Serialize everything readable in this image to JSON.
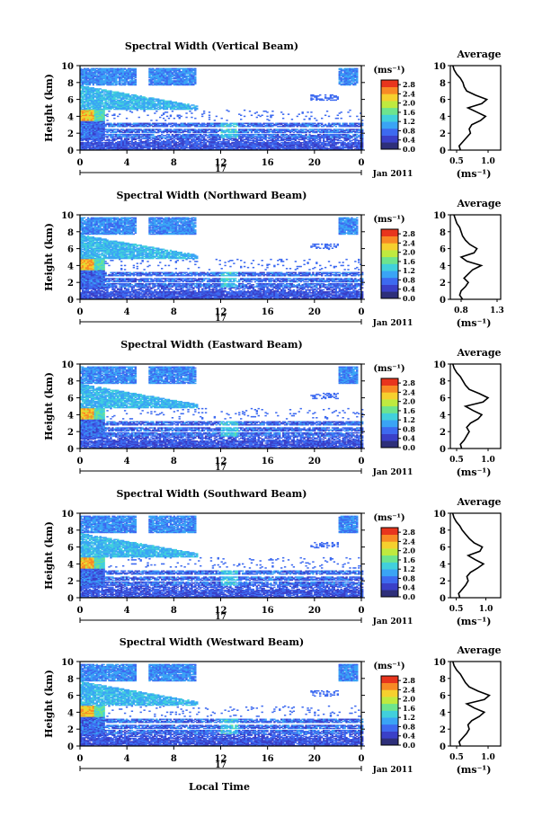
{
  "figure": {
    "xlabel": "Local Time",
    "colors": {
      "background": "#ffffff",
      "axis": "#000000",
      "profile_line": "#000000"
    }
  },
  "chart_data": [
    {
      "type": "heatmap",
      "title": "Spectral Width (Vertical Beam)",
      "ylabel": "Height (km)",
      "xticks": [
        "0",
        "4",
        "8",
        "12",
        "16",
        "20",
        "0"
      ],
      "yticks": [
        "0",
        "2",
        "4",
        "6",
        "8",
        "10"
      ],
      "xlim": [
        0,
        24
      ],
      "ylim": [
        0,
        10
      ],
      "date_label": "17",
      "month_label": "Jan 2011",
      "colorbar": {
        "unit": "(ms⁻¹)",
        "ticks": [
          "0.0",
          "0.4",
          "0.8",
          "1.2",
          "1.6",
          "2.0",
          "2.4",
          "2.8"
        ],
        "range": [
          0,
          3.0
        ],
        "colors": [
          "#2e2f7a",
          "#3a40c8",
          "#3d6af0",
          "#3aa4f5",
          "#41d0dc",
          "#6de48e",
          "#bfea3f",
          "#f6d02e",
          "#f88a25",
          "#e8351d"
        ]
      },
      "profile": {
        "title": "Average",
        "xticks": [
          "0.5",
          "1.0"
        ],
        "xlim": [
          0.4,
          1.2
        ],
        "xlabel": "(ms⁻¹)",
        "points": [
          [
            0.56,
            0.0
          ],
          [
            0.54,
            0.5
          ],
          [
            0.6,
            1.0
          ],
          [
            0.66,
            1.5
          ],
          [
            0.72,
            2.0
          ],
          [
            0.7,
            2.5
          ],
          [
            0.74,
            3.0
          ],
          [
            0.88,
            3.5
          ],
          [
            0.96,
            4.0
          ],
          [
            0.82,
            4.5
          ],
          [
            0.68,
            5.0
          ],
          [
            0.9,
            5.5
          ],
          [
            0.98,
            6.0
          ],
          [
            0.8,
            6.5
          ],
          [
            0.66,
            7.0
          ],
          [
            0.62,
            7.5
          ],
          [
            0.6,
            8.0
          ],
          [
            0.56,
            8.5
          ],
          [
            0.5,
            9.0
          ],
          [
            0.46,
            9.5
          ],
          [
            0.44,
            10.0
          ]
        ]
      }
    },
    {
      "type": "heatmap",
      "title": "Spectral Width (Northward Beam)",
      "ylabel": "Height (km)",
      "xticks": [
        "0",
        "4",
        "8",
        "12",
        "16",
        "20",
        "0"
      ],
      "yticks": [
        "0",
        "2",
        "4",
        "6",
        "8",
        "10"
      ],
      "xlim": [
        0,
        24
      ],
      "ylim": [
        0,
        10
      ],
      "date_label": "17",
      "month_label": "Jan 2011",
      "colorbar": {
        "unit": "(ms⁻¹)",
        "ticks": [
          "0.0",
          "0.4",
          "0.8",
          "1.2",
          "1.6",
          "2.0",
          "2.4",
          "2.8"
        ],
        "range": [
          0,
          3.0
        ],
        "colors": [
          "#2e2f7a",
          "#3a40c8",
          "#3d6af0",
          "#3aa4f5",
          "#41d0dc",
          "#6de48e",
          "#bfea3f",
          "#f6d02e",
          "#f88a25",
          "#e8351d"
        ]
      },
      "profile": {
        "title": "Average",
        "xticks": [
          "0.8",
          "1.3"
        ],
        "xlim": [
          0.65,
          1.35
        ],
        "xlabel": "(ms⁻¹)",
        "points": [
          [
            0.82,
            0.0
          ],
          [
            0.78,
            0.5
          ],
          [
            0.8,
            1.0
          ],
          [
            0.86,
            1.5
          ],
          [
            0.9,
            2.0
          ],
          [
            0.84,
            2.5
          ],
          [
            0.9,
            3.0
          ],
          [
            0.96,
            3.5
          ],
          [
            1.08,
            4.0
          ],
          [
            0.88,
            4.5
          ],
          [
            0.8,
            5.0
          ],
          [
            0.98,
            5.5
          ],
          [
            1.02,
            6.0
          ],
          [
            0.92,
            6.5
          ],
          [
            0.86,
            7.0
          ],
          [
            0.82,
            7.5
          ],
          [
            0.8,
            8.0
          ],
          [
            0.78,
            8.5
          ],
          [
            0.74,
            9.0
          ],
          [
            0.72,
            9.5
          ],
          [
            0.7,
            10.0
          ]
        ]
      }
    },
    {
      "type": "heatmap",
      "title": "Spectral Width (Eastward Beam)",
      "ylabel": "Height (km)",
      "xticks": [
        "0",
        "4",
        "8",
        "12",
        "16",
        "20",
        "0"
      ],
      "yticks": [
        "0",
        "2",
        "4",
        "6",
        "8",
        "10"
      ],
      "xlim": [
        0,
        24
      ],
      "ylim": [
        0,
        10
      ],
      "date_label": "17",
      "month_label": "Jan 2011",
      "colorbar": {
        "unit": "(ms⁻¹)",
        "ticks": [
          "0.0",
          "0.4",
          "0.8",
          "1.2",
          "1.6",
          "2.0",
          "2.4",
          "2.8"
        ],
        "range": [
          0,
          3.0
        ],
        "colors": [
          "#2e2f7a",
          "#3a40c8",
          "#3d6af0",
          "#3aa4f5",
          "#41d0dc",
          "#6de48e",
          "#bfea3f",
          "#f6d02e",
          "#f88a25",
          "#e8351d"
        ]
      },
      "profile": {
        "title": "Average",
        "xticks": [
          "0.5",
          "1.0"
        ],
        "xlim": [
          0.4,
          1.2
        ],
        "xlabel": "(ms⁻¹)",
        "points": [
          [
            0.58,
            0.0
          ],
          [
            0.56,
            0.5
          ],
          [
            0.62,
            1.0
          ],
          [
            0.66,
            1.5
          ],
          [
            0.7,
            2.0
          ],
          [
            0.66,
            2.5
          ],
          [
            0.72,
            3.0
          ],
          [
            0.84,
            3.5
          ],
          [
            0.9,
            4.0
          ],
          [
            0.76,
            4.5
          ],
          [
            0.64,
            5.0
          ],
          [
            0.92,
            5.5
          ],
          [
            1.0,
            6.0
          ],
          [
            0.86,
            6.5
          ],
          [
            0.7,
            7.0
          ],
          [
            0.64,
            7.5
          ],
          [
            0.6,
            8.0
          ],
          [
            0.56,
            8.5
          ],
          [
            0.5,
            9.0
          ],
          [
            0.46,
            9.5
          ],
          [
            0.44,
            10.0
          ]
        ]
      }
    },
    {
      "type": "heatmap",
      "title": "Spectral Width (Southward Beam)",
      "ylabel": "Height (km)",
      "xticks": [
        "0",
        "4",
        "8",
        "12",
        "16",
        "20",
        "0"
      ],
      "yticks": [
        "0",
        "2",
        "4",
        "6",
        "8",
        "10"
      ],
      "xlim": [
        0,
        24
      ],
      "ylim": [
        0,
        10
      ],
      "date_label": "17",
      "month_label": "Jan 2011",
      "colorbar": {
        "unit": "(ms⁻¹)",
        "ticks": [
          "0.0",
          "0.4",
          "0.8",
          "1.2",
          "1.6",
          "2.0",
          "2.4",
          "2.8"
        ],
        "range": [
          0,
          3.0
        ],
        "colors": [
          "#2e2f7a",
          "#3a40c8",
          "#3d6af0",
          "#3aa4f5",
          "#41d0dc",
          "#6de48e",
          "#bfea3f",
          "#f6d02e",
          "#f88a25",
          "#e8351d"
        ]
      },
      "profile": {
        "title": "Average",
        "xticks": [
          "0.5",
          "1.0"
        ],
        "xlim": [
          0.4,
          1.25
        ],
        "xlabel": "(ms⁻¹)",
        "points": [
          [
            0.56,
            0.0
          ],
          [
            0.54,
            0.5
          ],
          [
            0.6,
            1.0
          ],
          [
            0.66,
            1.5
          ],
          [
            0.7,
            2.0
          ],
          [
            0.68,
            2.5
          ],
          [
            0.74,
            3.0
          ],
          [
            0.86,
            3.5
          ],
          [
            0.96,
            4.0
          ],
          [
            0.82,
            4.5
          ],
          [
            0.7,
            5.0
          ],
          [
            0.9,
            5.5
          ],
          [
            0.94,
            6.0
          ],
          [
            0.8,
            6.5
          ],
          [
            0.72,
            7.0
          ],
          [
            0.66,
            7.5
          ],
          [
            0.6,
            8.0
          ],
          [
            0.56,
            8.5
          ],
          [
            0.5,
            9.0
          ],
          [
            0.46,
            9.5
          ],
          [
            0.44,
            10.0
          ]
        ]
      }
    },
    {
      "type": "heatmap",
      "title": "Spectral Width (Westward Beam)",
      "ylabel": "Height (km)",
      "xticks": [
        "0",
        "4",
        "8",
        "12",
        "16",
        "20",
        "0"
      ],
      "yticks": [
        "0",
        "2",
        "4",
        "6",
        "8",
        "10"
      ],
      "xlim": [
        0,
        24
      ],
      "ylim": [
        0,
        10
      ],
      "date_label": "17",
      "month_label": "Jan 2011",
      "colorbar": {
        "unit": "(ms⁻¹)",
        "ticks": [
          "0.0",
          "0.4",
          "0.8",
          "1.2",
          "1.6",
          "2.0",
          "2.4",
          "2.8"
        ],
        "range": [
          0,
          3.0
        ],
        "colors": [
          "#2e2f7a",
          "#3a40c8",
          "#3d6af0",
          "#3aa4f5",
          "#41d0dc",
          "#6de48e",
          "#bfea3f",
          "#f6d02e",
          "#f88a25",
          "#e8351d"
        ]
      },
      "profile": {
        "title": "Average",
        "xticks": [
          "0.5",
          "1.0"
        ],
        "xlim": [
          0.4,
          1.2
        ],
        "xlabel": "(ms⁻¹)",
        "points": [
          [
            0.56,
            0.0
          ],
          [
            0.54,
            0.5
          ],
          [
            0.6,
            1.0
          ],
          [
            0.66,
            1.5
          ],
          [
            0.7,
            2.0
          ],
          [
            0.68,
            2.5
          ],
          [
            0.74,
            3.0
          ],
          [
            0.86,
            3.5
          ],
          [
            0.94,
            4.0
          ],
          [
            0.78,
            4.5
          ],
          [
            0.66,
            5.0
          ],
          [
            0.94,
            5.5
          ],
          [
            1.02,
            6.0
          ],
          [
            0.84,
            6.5
          ],
          [
            0.7,
            7.0
          ],
          [
            0.64,
            7.5
          ],
          [
            0.6,
            8.0
          ],
          [
            0.56,
            8.5
          ],
          [
            0.5,
            9.0
          ],
          [
            0.46,
            9.5
          ],
          [
            0.44,
            10.0
          ]
        ]
      }
    }
  ]
}
